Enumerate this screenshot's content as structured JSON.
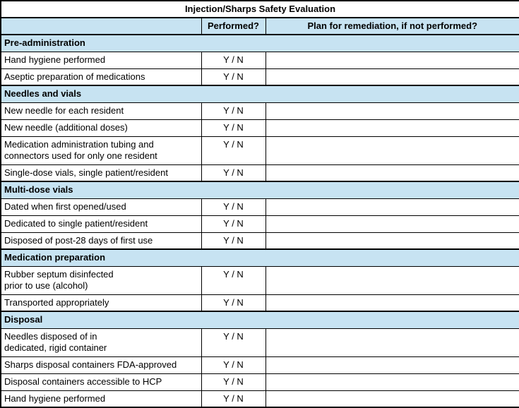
{
  "title": "Injection/Sharps Safety Evaluation",
  "header": {
    "performed": "Performed?",
    "plan": "Plan for remediation, if not performed?"
  },
  "yn_label": "Y / N",
  "colors": {
    "section_blue": "#C7E3F2",
    "border_black": "#000000",
    "text": "#000000"
  },
  "sections": [
    {
      "name": "Pre-administration",
      "rows": [
        {
          "item": "Hand hygiene performed"
        },
        {
          "item": "Aseptic preparation of medications"
        }
      ]
    },
    {
      "name": "Needles and vials",
      "rows": [
        {
          "item": "New needle for each resident"
        },
        {
          "item": "New needle (additional doses)"
        },
        {
          "item": "Medication administration tubing and\nconnectors used for only one resident"
        },
        {
          "item": "Single-dose vials, single patient/resident"
        }
      ]
    },
    {
      "name": "Multi-dose vials",
      "rows": [
        {
          "item": "Dated when first opened/used"
        },
        {
          "item": "Dedicated to single patient/resident"
        },
        {
          "item": "Disposed of post-28 days of first use"
        }
      ]
    },
    {
      "name": "Medication preparation",
      "rows": [
        {
          "item": "Rubber septum disinfected\nprior to use (alcohol)"
        },
        {
          "item": "Transported appropriately"
        }
      ]
    },
    {
      "name": "Disposal",
      "rows": [
        {
          "item": "Needles disposed of in\ndedicated, rigid container"
        },
        {
          "item": "Sharps disposal containers FDA-approved"
        },
        {
          "item": "Disposal containers accessible to HCP"
        },
        {
          "item": "Hand hygiene performed"
        }
      ]
    }
  ]
}
